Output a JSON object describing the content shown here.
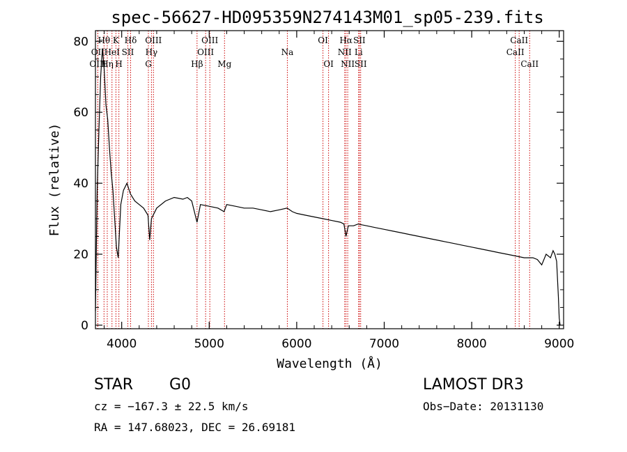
{
  "chart_data": {
    "type": "line",
    "title": "spec-56627-HD095359N274143M01_sp05-239.fits",
    "xlabel": "Wavelength (Å)",
    "ylabel": "Flux (relative)",
    "xlim": [
      3700,
      9050
    ],
    "ylim": [
      -1,
      83
    ],
    "xticks": [
      4000,
      5000,
      6000,
      7000,
      8000,
      9000
    ],
    "yticks": [
      0,
      20,
      40,
      60,
      80
    ],
    "series": [
      {
        "name": "spectrum",
        "x": [
          3700,
          3720,
          3740,
          3760,
          3780,
          3800,
          3820,
          3840,
          3860,
          3880,
          3900,
          3920,
          3940,
          3960,
          3970,
          3990,
          4020,
          4060,
          4100,
          4150,
          4200,
          4250,
          4300,
          4320,
          4340,
          4400,
          4500,
          4600,
          4700,
          4750,
          4800,
          4861,
          4900,
          5000,
          5100,
          5170,
          5200,
          5300,
          5400,
          5500,
          5600,
          5700,
          5800,
          5890,
          5950,
          6000,
          6100,
          6200,
          6300,
          6400,
          6500,
          6540,
          6563,
          6590,
          6650,
          6700,
          6800,
          6900,
          7000,
          7100,
          7200,
          7300,
          7400,
          7500,
          7600,
          7700,
          7800,
          7900,
          8000,
          8100,
          8200,
          8300,
          8400,
          8500,
          8600,
          8700,
          8750,
          8800,
          8850,
          8900,
          8930,
          8950,
          8970,
          8990,
          9000,
          9010
        ],
        "values": [
          4,
          38,
          55,
          70,
          78,
          72,
          62,
          58,
          50,
          43,
          38,
          30,
          22,
          19,
          24,
          34,
          38,
          40,
          37,
          35,
          34,
          33,
          31,
          24,
          30,
          33,
          35,
          36,
          35.5,
          36,
          35,
          29,
          34,
          33.5,
          33,
          32,
          34,
          33.5,
          33,
          33,
          32.5,
          32,
          32.5,
          33,
          32,
          31.5,
          31,
          30.5,
          30,
          29.5,
          29,
          28.5,
          25,
          28,
          28,
          28.5,
          28,
          27.5,
          27,
          26.5,
          26,
          25.5,
          25,
          24.5,
          24,
          23.5,
          23,
          22.5,
          22,
          21.5,
          21,
          20.5,
          20,
          19.5,
          19,
          19,
          18.5,
          17,
          20,
          19,
          21,
          20,
          18,
          8,
          2,
          0
        ]
      }
    ],
    "line_markers": [
      {
        "label": "Hθ",
        "wavelength": 3798,
        "row": 1
      },
      {
        "label": "OII",
        "wavelength": 3727,
        "row": 2
      },
      {
        "label": "OIII",
        "wavelength": 3727,
        "row": 3
      },
      {
        "label": "K",
        "wavelength": 3934,
        "row": 1
      },
      {
        "label": "HeI",
        "wavelength": 3889,
        "row": 2
      },
      {
        "label": "Hη",
        "wavelength": 3835,
        "row": 3
      },
      {
        "label": "SII",
        "wavelength": 4070,
        "row": 2
      },
      {
        "label": "H",
        "wavelength": 3968,
        "row": 3
      },
      {
        "label": "Hδ",
        "wavelength": 4102,
        "row": 1
      },
      {
        "label": "OIII",
        "wavelength": 4363,
        "row": 1
      },
      {
        "label": "Hγ",
        "wavelength": 4340,
        "row": 2
      },
      {
        "label": "G",
        "wavelength": 4305,
        "row": 3
      },
      {
        "label": "OIII",
        "wavelength": 5007,
        "row": 1
      },
      {
        "label": "OIII",
        "wavelength": 4959,
        "row": 2
      },
      {
        "label": "Hβ",
        "wavelength": 4861,
        "row": 3
      },
      {
        "label": "Mg",
        "wavelength": 5175,
        "row": 3
      },
      {
        "label": "Na",
        "wavelength": 5893,
        "row": 2
      },
      {
        "label": "OI",
        "wavelength": 6300,
        "row": 1
      },
      {
        "label": "OI",
        "wavelength": 6364,
        "row": 3
      },
      {
        "label": "Hα",
        "wavelength": 6563,
        "row": 1
      },
      {
        "label": "SII",
        "wavelength": 6716,
        "row": 1
      },
      {
        "label": "NII",
        "wavelength": 6548,
        "row": 2
      },
      {
        "label": "Li",
        "wavelength": 6708,
        "row": 2
      },
      {
        "label": "NII",
        "wavelength": 6583,
        "row": 3
      },
      {
        "label": "SII",
        "wavelength": 6731,
        "row": 3
      },
      {
        "label": "CaII",
        "wavelength": 8542,
        "row": 1
      },
      {
        "label": "CaII",
        "wavelength": 8498,
        "row": 2
      },
      {
        "label": "CaII",
        "wavelength": 8662,
        "row": 3
      }
    ],
    "colors": {
      "spectrum": "#000000",
      "marker": "#cc0000",
      "axes": "#000000"
    }
  },
  "footer": {
    "class_label": "STAR",
    "subclass": "G0",
    "survey": "LAMOST DR3",
    "cz": "cz = −167.3 ± 22.5 km/s",
    "obs_date": "Obs−Date: 20131130",
    "coords": "RA = 147.68023, DEC =  26.69181"
  }
}
